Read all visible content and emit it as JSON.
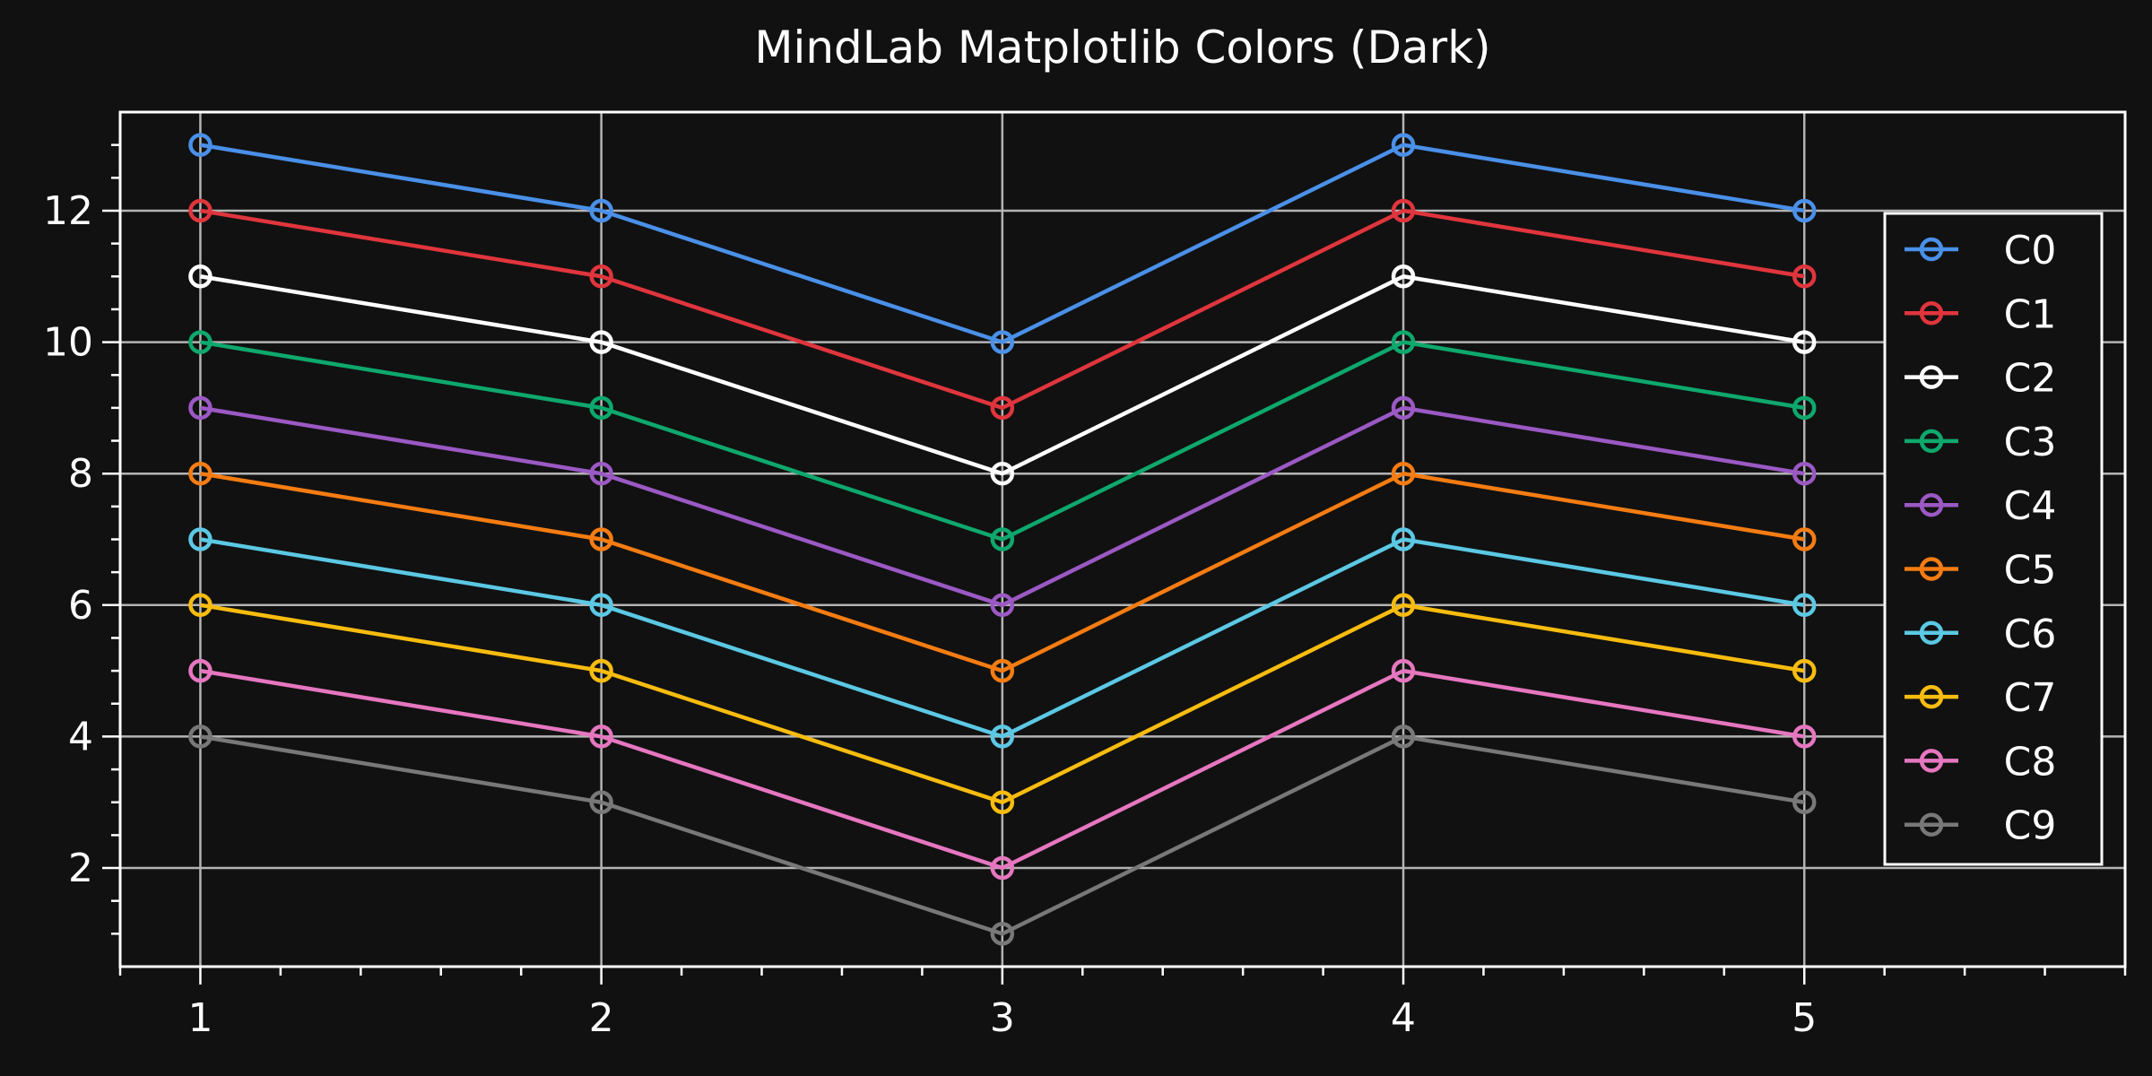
{
  "chart_data": {
    "type": "line",
    "title": "MindLab Matplotlib Colors (Dark)",
    "xlabel": "",
    "ylabel": "",
    "x": [
      1,
      2,
      3,
      4,
      5
    ],
    "xlim": [
      0.8,
      5.8
    ],
    "ylim": [
      0.5,
      13.5
    ],
    "x_ticks": [
      1,
      2,
      3,
      4,
      5
    ],
    "y_ticks": [
      2,
      4,
      6,
      8,
      10,
      12
    ],
    "grid": true,
    "legend_position": "right",
    "background": "#111111",
    "series": [
      {
        "name": "C0",
        "color": "#4a90e8",
        "values": [
          13,
          12,
          10,
          13,
          12
        ]
      },
      {
        "name": "C1",
        "color": "#e0353d",
        "values": [
          12,
          11,
          9,
          12,
          11
        ]
      },
      {
        "name": "C2",
        "color": "#ffffff",
        "values": [
          11,
          10,
          8,
          11,
          10
        ]
      },
      {
        "name": "C3",
        "color": "#0ea86d",
        "values": [
          10,
          9,
          7,
          10,
          9
        ]
      },
      {
        "name": "C4",
        "color": "#9b59c4",
        "values": [
          9,
          8,
          6,
          9,
          8
        ]
      },
      {
        "name": "C5",
        "color": "#f57c12",
        "values": [
          8,
          7,
          5,
          8,
          7
        ]
      },
      {
        "name": "C6",
        "color": "#5bc8e4",
        "values": [
          7,
          6,
          4,
          7,
          6
        ]
      },
      {
        "name": "C7",
        "color": "#f7bc0f",
        "values": [
          6,
          5,
          3,
          6,
          5
        ]
      },
      {
        "name": "C8",
        "color": "#e676c0",
        "values": [
          5,
          4,
          2,
          5,
          4
        ]
      },
      {
        "name": "C9",
        "color": "#787878",
        "values": [
          4,
          3,
          1,
          4,
          3
        ]
      }
    ]
  }
}
